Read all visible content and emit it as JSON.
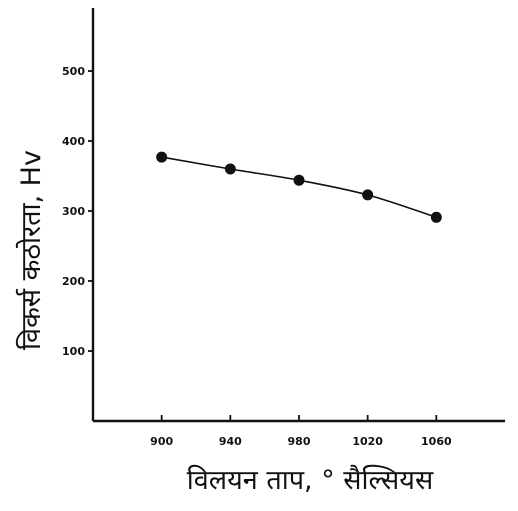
{
  "chart_data": {
    "type": "line",
    "title": "",
    "xlabel": "विलयन ताप, ° सैल्सियस",
    "ylabel": "विकर्स कठोरता, Hv",
    "x": [
      900,
      940,
      980,
      1020,
      1060
    ],
    "series": [
      {
        "values": [
          377,
          360,
          344,
          323,
          291
        ]
      }
    ],
    "xticks": [
      "900",
      "940",
      "980",
      "1020",
      "1060"
    ],
    "yticks": [
      "100",
      "200",
      "300",
      "400",
      "500"
    ],
    "ytick_values": [
      100,
      200,
      300,
      400,
      500
    ],
    "xlim": [
      860,
      1100
    ],
    "ylim": [
      0,
      590
    ],
    "grid": false,
    "colors": {
      "ink": "#111111",
      "background": "#ffffff"
    }
  }
}
